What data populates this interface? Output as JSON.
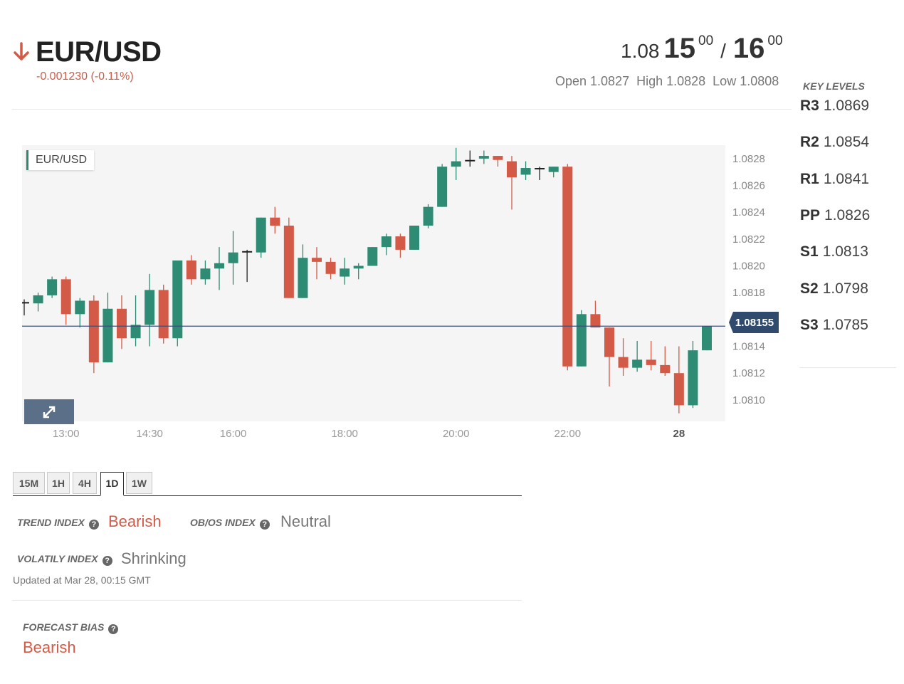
{
  "header": {
    "pair": "EUR/USD",
    "change": "-0.001230 (-0.11%)",
    "direction": "down",
    "bid": {
      "prefix": "1.08",
      "big": "15",
      "sup": "00"
    },
    "ask": {
      "big": "16",
      "sup": "00"
    },
    "separator": "/",
    "open": "Open 1.0827",
    "high": "High 1.0828",
    "low": "Low 1.0808"
  },
  "key_levels": {
    "title": "KEY LEVELS",
    "levels": [
      {
        "name": "R3",
        "value": "1.0869"
      },
      {
        "name": "R2",
        "value": "1.0854"
      },
      {
        "name": "R1",
        "value": "1.0841"
      },
      {
        "name": "PP",
        "value": "1.0826"
      },
      {
        "name": "S1",
        "value": "1.0813"
      },
      {
        "name": "S2",
        "value": "1.0798"
      },
      {
        "name": "S3",
        "value": "1.0785"
      }
    ]
  },
  "chart": {
    "label": "EUR/USD",
    "current_price": "1.08155",
    "expand_icon": "expand-arrows-icon",
    "colors": {
      "up": "#2e8b74",
      "down": "#d35a46",
      "line": "#3b4f7a",
      "tag": "#2f4a6d"
    }
  },
  "chart_data": {
    "type": "candlestick",
    "xlabel": "",
    "ylabel": "",
    "y_ticks": [
      "1.0828",
      "1.0826",
      "1.0824",
      "1.0822",
      "1.0820",
      "1.0818",
      "1.0814",
      "1.0812",
      "1.0810"
    ],
    "x_ticks": [
      "13:00",
      "14:30",
      "16:00",
      "18:00",
      "20:00",
      "22:00",
      "28"
    ],
    "ylim": [
      1.08084,
      1.0829
    ],
    "current_price": 1.08155,
    "candles": [
      [
        1.08173,
        1.08175,
        1.08163,
        1.08172
      ],
      [
        1.08172,
        1.0818,
        1.08166,
        1.08178
      ],
      [
        1.08178,
        1.08192,
        1.08176,
        1.0819
      ],
      [
        1.0819,
        1.08192,
        1.08156,
        1.08164
      ],
      [
        1.08164,
        1.08176,
        1.08154,
        1.08174
      ],
      [
        1.08174,
        1.08178,
        1.0812,
        1.08128
      ],
      [
        1.08128,
        1.0818,
        1.08128,
        1.08168
      ],
      [
        1.08168,
        1.08178,
        1.08138,
        1.08146
      ],
      [
        1.08146,
        1.08178,
        1.0814,
        1.08156
      ],
      [
        1.08156,
        1.08194,
        1.0814,
        1.08182
      ],
      [
        1.08182,
        1.08186,
        1.08142,
        1.08146
      ],
      [
        1.08146,
        1.08204,
        1.0814,
        1.08204
      ],
      [
        1.08204,
        1.08208,
        1.08186,
        1.0819
      ],
      [
        1.0819,
        1.08204,
        1.08186,
        1.08198
      ],
      [
        1.08198,
        1.08214,
        1.08182,
        1.08202
      ],
      [
        1.08202,
        1.08226,
        1.08186,
        1.0821
      ],
      [
        1.08211,
        1.08212,
        1.08188,
        1.08211
      ],
      [
        1.0821,
        1.08236,
        1.08206,
        1.08236
      ],
      [
        1.08236,
        1.08244,
        1.08224,
        1.0823
      ],
      [
        1.0823,
        1.08236,
        1.08176,
        1.08176
      ],
      [
        1.08176,
        1.08216,
        1.08176,
        1.08206
      ],
      [
        1.08206,
        1.08214,
        1.0819,
        1.08203
      ],
      [
        1.08203,
        1.08206,
        1.0819,
        1.08194
      ],
      [
        1.08192,
        1.08206,
        1.08186,
        1.08198
      ],
      [
        1.08198,
        1.08202,
        1.0819,
        1.082
      ],
      [
        1.082,
        1.08214,
        1.082,
        1.08214
      ],
      [
        1.08214,
        1.08224,
        1.08208,
        1.08222
      ],
      [
        1.08222,
        1.08224,
        1.08206,
        1.08212
      ],
      [
        1.08212,
        1.0823,
        1.08212,
        1.0823
      ],
      [
        1.0823,
        1.08246,
        1.08228,
        1.08244
      ],
      [
        1.08244,
        1.08276,
        1.08244,
        1.08274
      ],
      [
        1.08274,
        1.08288,
        1.08264,
        1.08278
      ],
      [
        1.08279,
        1.08286,
        1.08274,
        1.08279
      ],
      [
        1.0828,
        1.08286,
        1.08276,
        1.08282
      ],
      [
        1.08282,
        1.08282,
        1.08274,
        1.08279
      ],
      [
        1.08278,
        1.08282,
        1.08242,
        1.08266
      ],
      [
        1.08268,
        1.08278,
        1.08264,
        1.08273
      ],
      [
        1.08273,
        1.08274,
        1.08264,
        1.08272
      ],
      [
        1.0827,
        1.08274,
        1.08266,
        1.08274
      ],
      [
        1.08274,
        1.08276,
        1.08122,
        1.08125
      ],
      [
        1.08125,
        1.08167,
        1.08125,
        1.08164
      ],
      [
        1.08164,
        1.08174,
        1.08154,
        1.08154
      ],
      [
        1.08154,
        1.08154,
        1.0811,
        1.08132
      ],
      [
        1.08132,
        1.08146,
        1.08118,
        1.08124
      ],
      [
        1.08124,
        1.08144,
        1.08121,
        1.0813
      ],
      [
        1.0813,
        1.08144,
        1.08122,
        1.08126
      ],
      [
        1.08126,
        1.0814,
        1.08118,
        1.0812
      ],
      [
        1.0812,
        1.0814,
        1.0809,
        1.08096
      ],
      [
        1.08096,
        1.08144,
        1.08094,
        1.08137
      ],
      [
        1.08137,
        1.08155,
        1.08137,
        1.08155
      ]
    ]
  },
  "timeframes": {
    "tabs": [
      "15M",
      "1H",
      "4H",
      "1D",
      "1W"
    ],
    "active": "1D"
  },
  "indices": {
    "trend": {
      "label": "TREND INDEX",
      "value": "Bearish"
    },
    "obos": {
      "label": "OB/OS INDEX",
      "value": "Neutral"
    },
    "volatility": {
      "label": "VOLATILY INDEX",
      "value": "Shrinking"
    },
    "updated": "Updated at Mar 28, 00:15 GMT",
    "forecast": {
      "label": "FORECAST BIAS",
      "value": "Bearish"
    },
    "help_icon": "question-icon"
  }
}
